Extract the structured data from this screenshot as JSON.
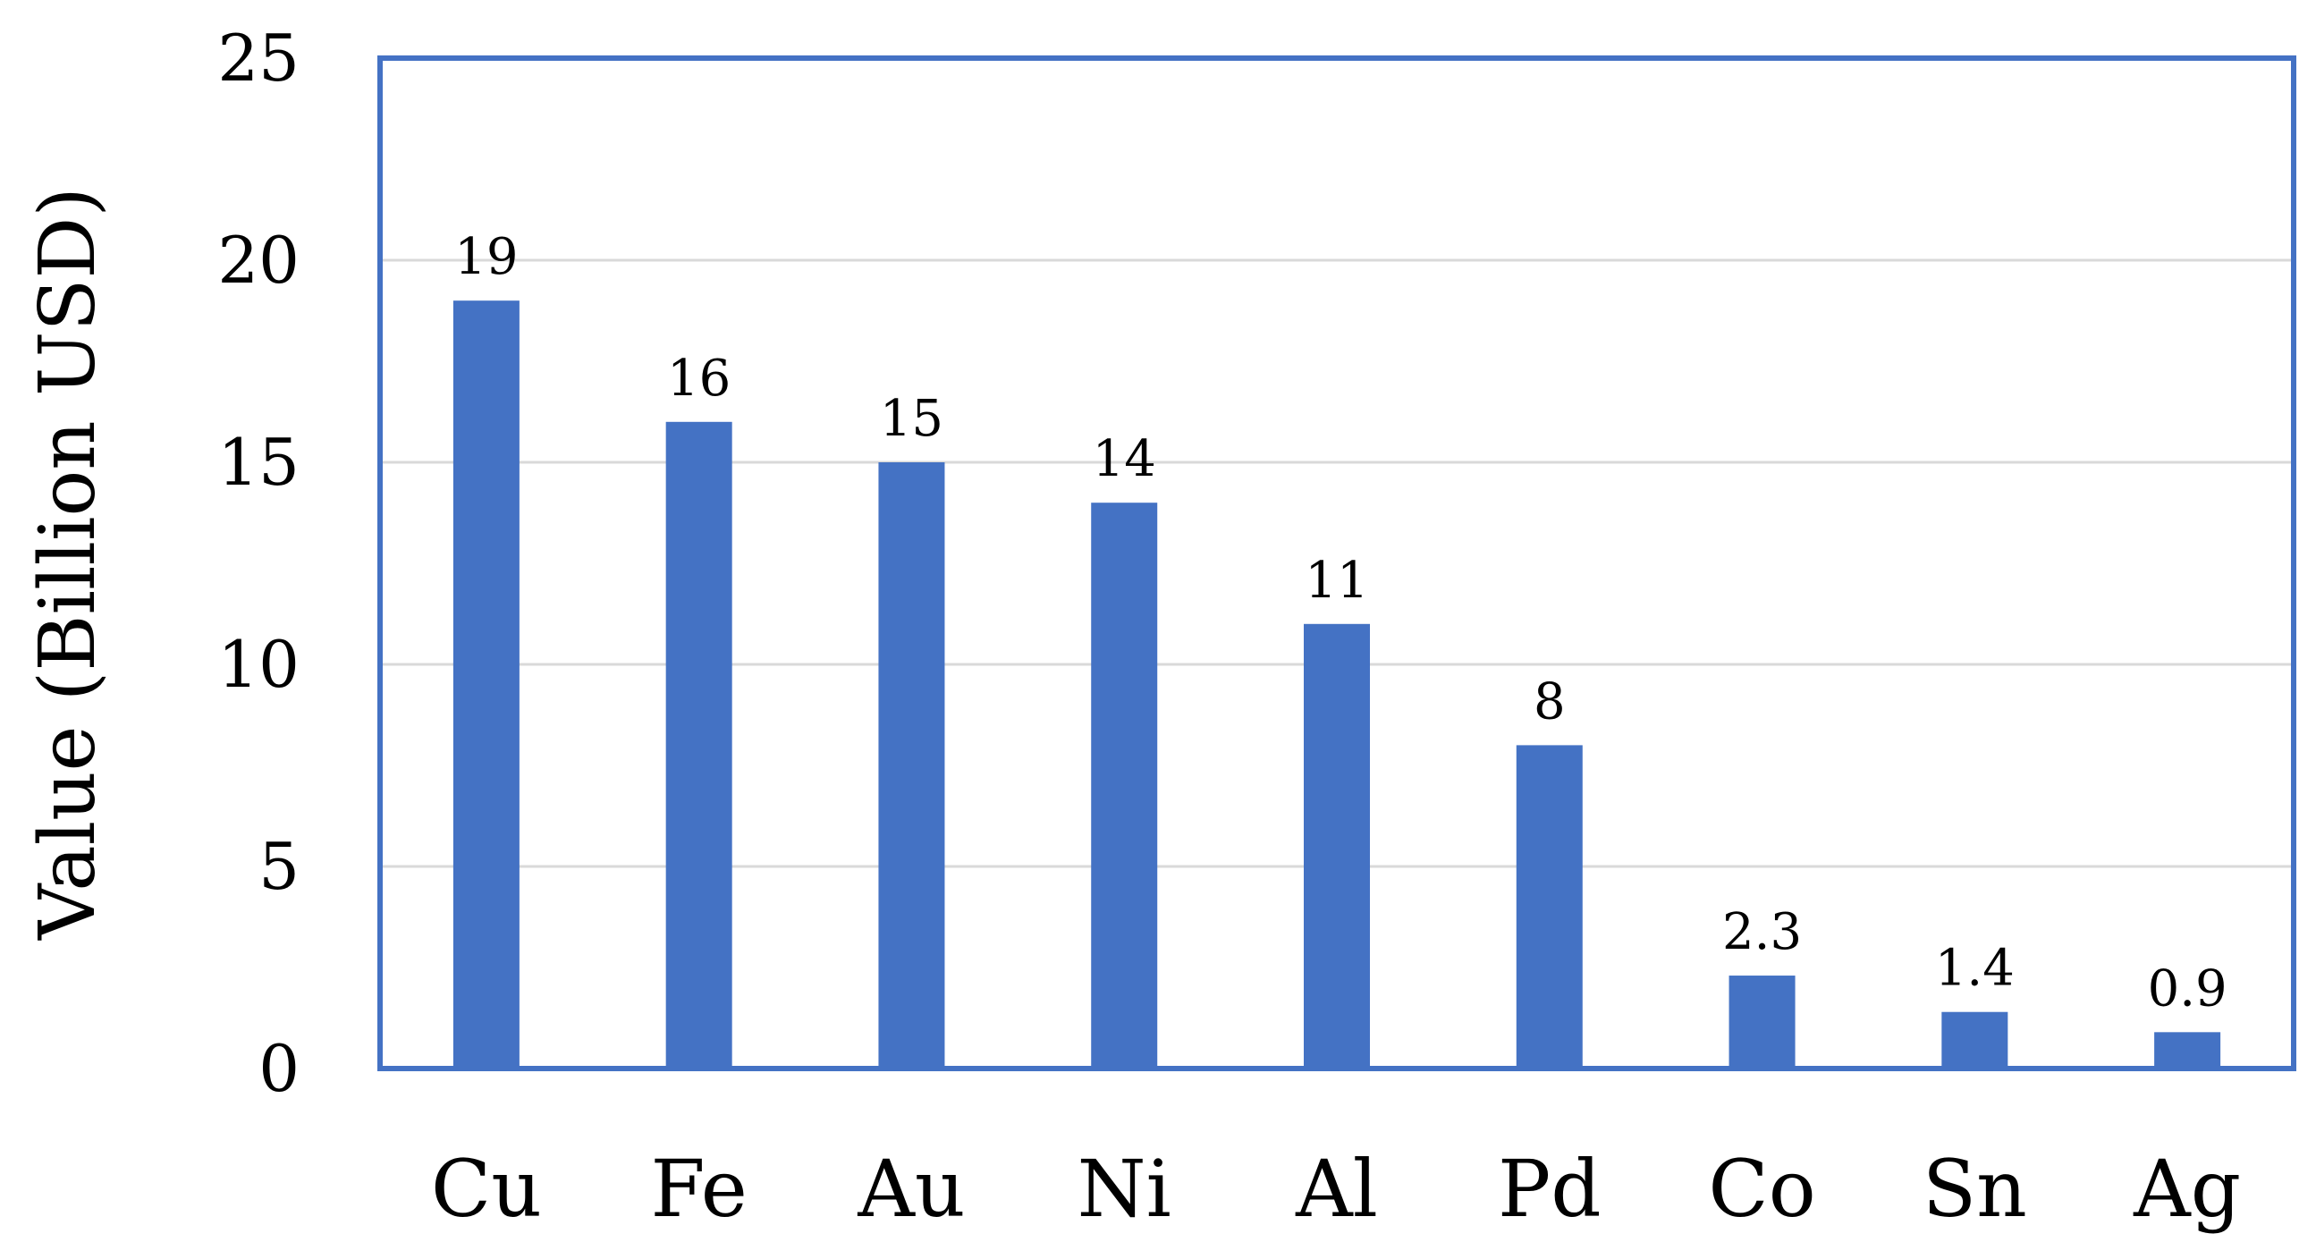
{
  "chart_data": {
    "type": "bar",
    "title": "",
    "xlabel": "",
    "ylabel": "Value (Billion USD)",
    "categories": [
      "Cu",
      "Fe",
      "Au",
      "Ni",
      "Al",
      "Pd",
      "Co",
      "Sn",
      "Ag"
    ],
    "values": [
      19,
      16,
      15,
      14,
      11,
      8,
      2.3,
      1.4,
      0.9
    ],
    "value_labels": [
      "19",
      "16",
      "15",
      "14",
      "11",
      "8",
      "2.3",
      "1.4",
      "0.9"
    ],
    "ylim": [
      0,
      25
    ],
    "yticks": [
      0,
      5,
      10,
      15,
      20,
      25
    ],
    "grid": true,
    "legend": "none",
    "colors": {
      "bar": "#4472C4",
      "frame": "#4472C4",
      "grid": "#D9D9D9"
    }
  }
}
